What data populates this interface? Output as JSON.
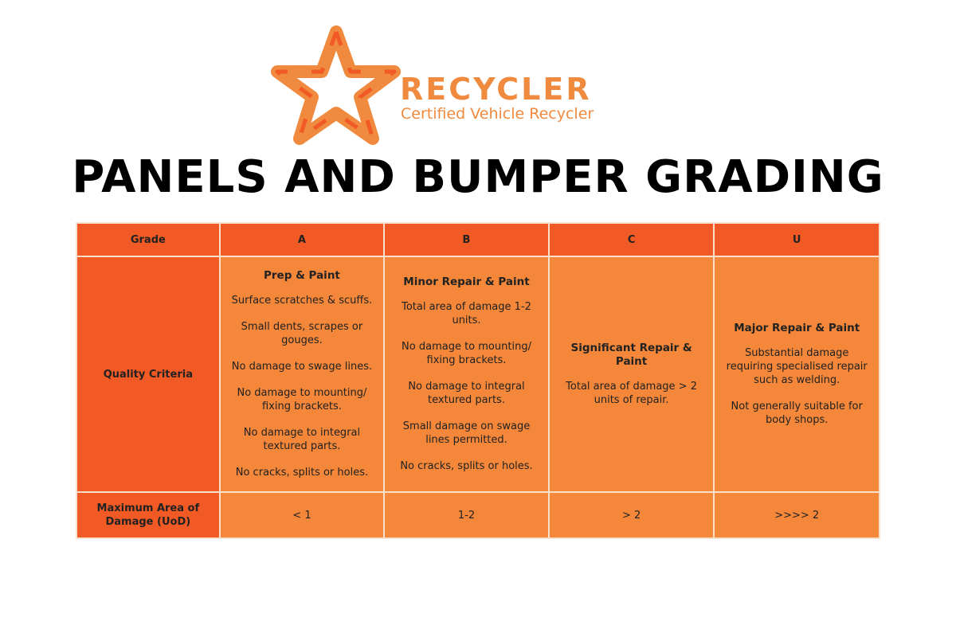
{
  "logo": {
    "brand": "RECYCLER",
    "tagline": "Certified Vehicle Recycler",
    "color": "#f08a3e"
  },
  "title": "PANELS AND BUMPER GRADING",
  "colors": {
    "header": "#f15a24",
    "cell": "#f4873a"
  },
  "table": {
    "row_headers": {
      "grade": "Grade",
      "criteria": "Quality Criteria",
      "max_area": "Maximum Area of Damage (UoD)"
    },
    "grades": [
      {
        "grade": "A",
        "title": "Prep & Paint",
        "criteria": [
          "Surface scratches & scuffs.",
          "Small dents, scrapes or gouges.",
          "No damage to swage lines.",
          "No damage to mounting/ fixing brackets.",
          "No damage to integral textured parts.",
          "No cracks, splits or holes."
        ],
        "max_area": "< 1"
      },
      {
        "grade": "B",
        "title": "Minor Repair & Paint",
        "criteria": [
          "Total area of damage 1-2 units.",
          "No damage to mounting/ fixing brackets.",
          "No damage to integral textured parts.",
          "Small damage on swage lines permitted.",
          "No cracks, splits or holes."
        ],
        "max_area": "1-2"
      },
      {
        "grade": "C",
        "title": "Significant Repair & Paint",
        "criteria": [
          "Total area of damage > 2 units of repair."
        ],
        "max_area": "> 2"
      },
      {
        "grade": "U",
        "title": "Major Repair & Paint",
        "criteria": [
          "Substantial damage requiring specialised repair such as welding.",
          "Not generally suitable for body shops."
        ],
        "max_area": ">>>> 2"
      }
    ]
  }
}
